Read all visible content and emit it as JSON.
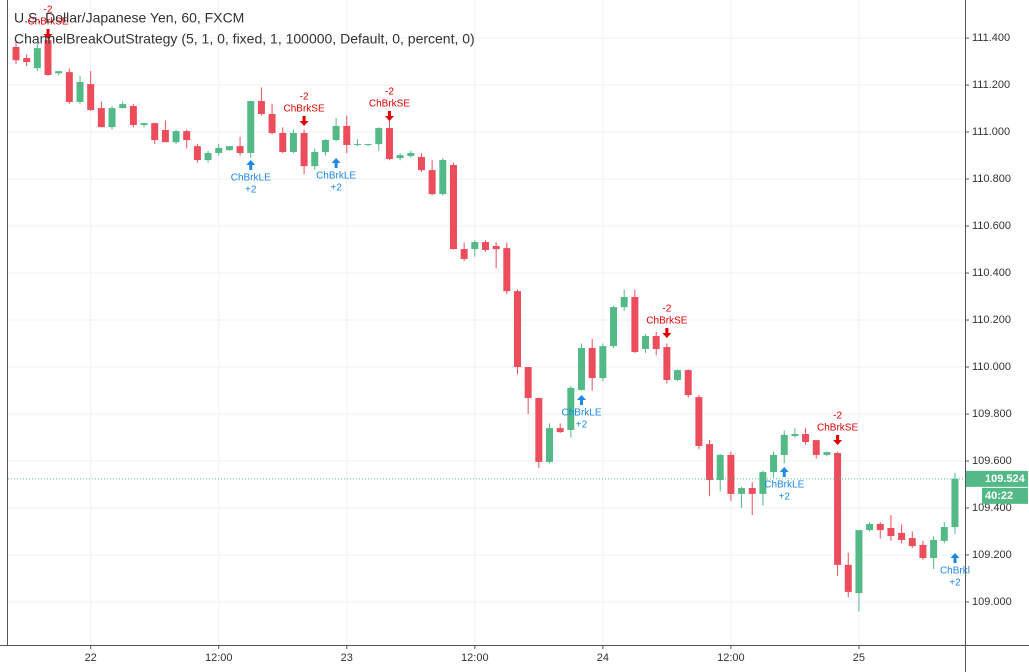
{
  "chart_data": {
    "type": "candlestick",
    "title": "U.S. Dollar/Japanese Yen, 60, FXCM",
    "subtitle": "ChannelBreakOutStrategy (5, 1, 0, fixed, 1, 100000, Default, 0, percent, 0)",
    "up_color": "#53b987",
    "down_color": "#eb4d5c",
    "categories": [
      null,
      null,
      null,
      null,
      null,
      null,
      null,
      "22",
      null,
      null,
      null,
      null,
      null,
      null,
      null,
      null,
      null,
      null,
      null,
      "12:00",
      null,
      null,
      null,
      null,
      null,
      null,
      null,
      null,
      null,
      null,
      null,
      "23",
      null,
      null,
      null,
      null,
      null,
      null,
      null,
      null,
      null,
      null,
      null,
      "12:00",
      null,
      null,
      null,
      null,
      null,
      null,
      null,
      null,
      null,
      null,
      null,
      "24",
      null,
      null,
      null,
      null,
      null,
      null,
      null,
      null,
      null,
      null,
      null,
      "12:00",
      null,
      null,
      null,
      null,
      null,
      null,
      null,
      null,
      null,
      null,
      null,
      "25",
      null,
      null,
      null,
      null,
      null,
      null,
      null,
      null,
      null
    ],
    "open": [
      111.362,
      111.315,
      111.272,
      111.391,
      111.25,
      111.255,
      111.128,
      111.204,
      111.102,
      111.021,
      111.102,
      111.111,
      111.03,
      111.038,
      111.009,
      110.957,
      111.004,
      110.94,
      110.881,
      110.911,
      110.923,
      110.94,
      110.911,
      111.132,
      111.077,
      110.996,
      110.915,
      110.996,
      110.855,
      110.915,
      110.966,
      111.026,
      110.945,
      110.945,
      110.949,
      111.017,
      110.889,
      110.898,
      110.894,
      110.838,
      110.736,
      110.86,
      110.502,
      110.502,
      110.532,
      110.515,
      110.506,
      110.323,
      110.0,
      109.868,
      109.596,
      109.74,
      109.732,
      109.902,
      110.081,
      109.953,
      110.089,
      110.255,
      110.298,
      110.077,
      110.132,
      110.085,
      109.945,
      109.987,
      109.872,
      109.672,
      109.519,
      109.626,
      109.46,
      109.485,
      109.46,
      109.553,
      109.626,
      109.706,
      109.715,
      109.689,
      109.626,
      109.634,
      109.158,
      109.038,
      109.306,
      109.332,
      109.315,
      109.294,
      109.272,
      109.243,
      109.187,
      109.26,
      109.319
    ],
    "high": [
      111.39,
      111.33,
      111.38,
      111.42,
      111.26,
      111.27,
      111.24,
      111.26,
      111.13,
      111.11,
      111.13,
      111.12,
      111.04,
      111.04,
      111.05,
      111.01,
      111.01,
      110.95,
      110.92,
      110.95,
      110.94,
      110.98,
      111.13,
      111.19,
      111.12,
      111.02,
      111.01,
      111.01,
      110.93,
      110.97,
      111.06,
      111.07,
      110.97,
      110.95,
      111.02,
      111.05,
      110.91,
      110.92,
      110.91,
      110.88,
      110.89,
      110.87,
      110.53,
      110.54,
      110.54,
      110.53,
      110.53,
      110.33,
      110.0,
      109.87,
      109.76,
      109.76,
      109.92,
      110.1,
      110.12,
      110.1,
      110.26,
      110.33,
      110.33,
      110.14,
      110.15,
      110.1,
      109.99,
      109.99,
      109.88,
      109.69,
      109.63,
      109.64,
      109.49,
      109.51,
      109.56,
      109.64,
      109.73,
      109.74,
      109.74,
      109.69,
      109.64,
      109.64,
      109.21,
      109.3,
      109.34,
      109.34,
      109.37,
      109.33,
      109.3,
      109.26,
      109.28,
      109.34,
      109.55
    ],
    "low": [
      111.29,
      111.28,
      111.26,
      111.24,
      111.24,
      111.12,
      111.12,
      111.09,
      111.02,
      111.01,
      111.1,
      111.02,
      111.02,
      110.95,
      110.96,
      110.95,
      110.93,
      110.87,
      110.87,
      110.9,
      110.92,
      110.9,
      110.89,
      111.07,
      110.99,
      110.91,
      110.91,
      110.82,
      110.84,
      110.9,
      110.96,
      110.91,
      110.94,
      110.94,
      110.92,
      110.88,
      110.88,
      110.89,
      110.83,
      110.73,
      110.73,
      110.5,
      110.45,
      110.47,
      110.49,
      110.42,
      110.31,
      109.97,
      109.8,
      109.57,
      109.59,
      109.72,
      109.7,
      109.9,
      109.9,
      109.94,
      110.08,
      110.24,
      110.06,
      110.06,
      110.05,
      109.93,
      109.94,
      109.87,
      109.65,
      109.45,
      109.47,
      109.43,
      109.4,
      109.37,
      109.41,
      109.53,
      109.59,
      109.7,
      109.67,
      109.61,
      109.62,
      109.11,
      109.02,
      108.96,
      109.3,
      109.27,
      109.26,
      109.25,
      109.23,
      109.18,
      109.14,
      109.25,
      109.29
    ],
    "close": [
      111.306,
      111.298,
      111.357,
      111.243,
      111.259,
      111.128,
      111.213,
      111.094,
      111.021,
      111.102,
      111.119,
      111.03,
      111.038,
      110.966,
      110.957,
      111.004,
      110.966,
      110.881,
      110.911,
      110.932,
      110.94,
      110.911,
      111.132,
      111.077,
      110.996,
      110.915,
      110.996,
      110.855,
      110.915,
      110.966,
      111.026,
      110.945,
      110.949,
      110.949,
      111.017,
      110.885,
      110.902,
      110.911,
      110.838,
      110.736,
      110.881,
      110.502,
      110.46,
      110.532,
      110.498,
      110.502,
      110.323,
      110.0,
      109.868,
      109.596,
      109.74,
      109.723,
      109.911,
      110.081,
      109.953,
      110.089,
      110.255,
      110.298,
      110.064,
      110.132,
      110.077,
      109.945,
      109.987,
      109.881,
      109.664,
      109.519,
      109.626,
      109.46,
      109.485,
      109.46,
      109.553,
      109.626,
      109.711,
      109.715,
      109.681,
      109.626,
      109.638,
      109.158,
      109.043,
      109.306,
      109.332,
      109.306,
      109.281,
      109.264,
      109.238,
      109.187,
      109.264,
      109.319,
      109.524
    ],
    "ylim": [
      108.817,
      111.562
    ],
    "yticks": [
      {
        "value": 109.0,
        "label": "109.000"
      },
      {
        "value": 109.2,
        "label": "109.200"
      },
      {
        "value": 109.4,
        "label": "109.400"
      },
      {
        "value": 109.6,
        "label": "109.600"
      },
      {
        "value": 109.8,
        "label": "109.800"
      },
      {
        "value": 110.0,
        "label": "110.000"
      },
      {
        "value": 110.2,
        "label": "110.200"
      },
      {
        "value": 110.4,
        "label": "110.400"
      },
      {
        "value": 110.6,
        "label": "110.600"
      },
      {
        "value": 110.8,
        "label": "110.800"
      },
      {
        "value": 111.0,
        "label": "111.000"
      },
      {
        "value": 111.2,
        "label": "111.200"
      },
      {
        "value": 111.4,
        "label": "111.400"
      }
    ],
    "grid": true,
    "last_price": 109.524,
    "countdown": "40:22",
    "signals": [
      {
        "qty": "-2",
        "label": "ChBrkSE"
      },
      {
        "qty": "+2",
        "label": "ChBrkLE"
      },
      {
        "qty": "-2",
        "label": "ChBrkSE"
      },
      {
        "qty": "+2",
        "label": "ChBrkLE"
      },
      {
        "qty": "-2",
        "label": "ChBrkSE"
      },
      {
        "qty": "+2",
        "label": "ChBrkLE"
      },
      {
        "qty": "-2",
        "label": "ChBrkSE"
      },
      {
        "qty": "+2",
        "label": "ChBrkLE"
      },
      {
        "qty": "-2",
        "label": "ChBrkSE"
      },
      {
        "qty": "+2",
        "label": "ChBrkl"
      }
    ]
  }
}
